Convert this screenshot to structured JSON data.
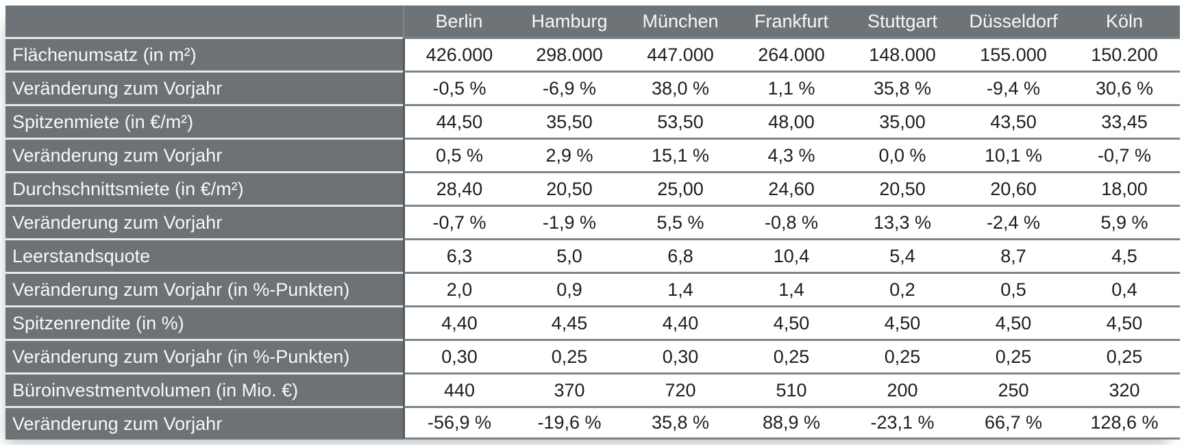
{
  "colors": {
    "header_bg": "#6d7377",
    "label_bg": "#6c7276",
    "label_divider": "#e9eaea",
    "data_divider": "#7d8386",
    "column_boundary": "#53585b",
    "header_seam": "#82878a",
    "data_text": "#1d1d1b",
    "header_text": "#f7f8f8"
  },
  "chart_data": {
    "type": "table",
    "columns": [
      "Berlin",
      "Hamburg",
      "München",
      "Frankfurt",
      "Stuttgart",
      "Düsseldorf",
      "Köln"
    ],
    "rows": [
      {
        "label": "Flächenumsatz (in m²)",
        "values": [
          "426.000",
          "298.000",
          "447.000",
          "264.000",
          "148.000",
          "155.000",
          "150.200"
        ]
      },
      {
        "label": "Veränderung zum Vorjahr",
        "values": [
          "-0,5 %",
          "-6,9 %",
          "38,0 %",
          "1,1 %",
          "35,8 %",
          "-9,4 %",
          "30,6 %"
        ]
      },
      {
        "label": "Spitzenmiete (in €/m²)",
        "values": [
          "44,50",
          "35,50",
          "53,50",
          "48,00",
          "35,00",
          "43,50",
          "33,45"
        ]
      },
      {
        "label": "Veränderung zum Vorjahr",
        "values": [
          "0,5 %",
          "2,9 %",
          "15,1 %",
          "4,3 %",
          "0,0 %",
          "10,1 %",
          "-0,7 %"
        ]
      },
      {
        "label": "Durchschnittsmiete (in €/m²)",
        "values": [
          "28,40",
          "20,50",
          "25,00",
          "24,60",
          "20,50",
          "20,60",
          "18,00"
        ]
      },
      {
        "label": "Veränderung zum Vorjahr",
        "values": [
          "-0,7 %",
          "-1,9 %",
          "5,5 %",
          "-0,8 %",
          "13,3 %",
          "-2,4 %",
          "5,9 %"
        ]
      },
      {
        "label": "Leerstandsquote",
        "values": [
          "6,3",
          "5,0",
          "6,8",
          "10,4",
          "5,4",
          "8,7",
          "4,5"
        ]
      },
      {
        "label": "Veränderung zum Vorjahr (in %-Punkten)",
        "values": [
          "2,0",
          "0,9",
          "1,4",
          "1,4",
          "0,2",
          "0,5",
          "0,4"
        ]
      },
      {
        "label": "Spitzenrendite (in %)",
        "values": [
          "4,40",
          "4,45",
          "4,40",
          "4,50",
          "4,50",
          "4,50",
          "4,50"
        ]
      },
      {
        "label": "Veränderung zum Vorjahr (in %-Punkten)",
        "values": [
          "0,30",
          "0,25",
          "0,30",
          "0,25",
          "0,25",
          "0,25",
          "0,25"
        ]
      },
      {
        "label": "Büroinvestmentvolumen (in Mio. €)",
        "values": [
          "440",
          "370",
          "720",
          "510",
          "200",
          "250",
          "320"
        ]
      },
      {
        "label": "Veränderung zum Vorjahr",
        "values": [
          "-56,9 %",
          "-19,6 %",
          "35,8 %",
          "88,9 %",
          "-23,1 %",
          "66,7 %",
          "128,6 %"
        ]
      }
    ]
  }
}
